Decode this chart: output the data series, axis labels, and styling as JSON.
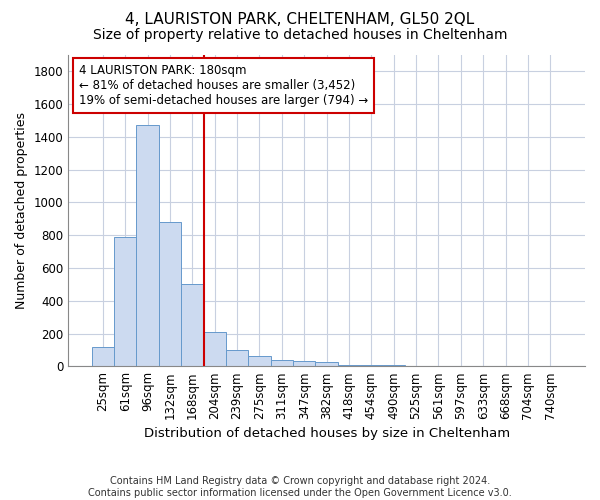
{
  "title1": "4, LAURISTON PARK, CHELTENHAM, GL50 2QL",
  "title2": "Size of property relative to detached houses in Cheltenham",
  "xlabel": "Distribution of detached houses by size in Cheltenham",
  "ylabel": "Number of detached properties",
  "footnote1": "Contains HM Land Registry data © Crown copyright and database right 2024.",
  "footnote2": "Contains public sector information licensed under the Open Government Licence v3.0.",
  "categories": [
    "25sqm",
    "61sqm",
    "96sqm",
    "132sqm",
    "168sqm",
    "204sqm",
    "239sqm",
    "275sqm",
    "311sqm",
    "347sqm",
    "382sqm",
    "418sqm",
    "454sqm",
    "490sqm",
    "525sqm",
    "561sqm",
    "597sqm",
    "633sqm",
    "668sqm",
    "704sqm",
    "740sqm"
  ],
  "values": [
    120,
    790,
    1470,
    880,
    500,
    210,
    100,
    60,
    40,
    30,
    25,
    10,
    5,
    5,
    3,
    3,
    3,
    3,
    3,
    3,
    0
  ],
  "bar_color": "#ccdaf0",
  "bar_edge_color": "#6699cc",
  "grid_color": "#c8d0e0",
  "vline_x": 4.5,
  "vline_color": "#cc0000",
  "annotation_line1": "4 LAURISTON PARK: 180sqm",
  "annotation_line2": "← 81% of detached houses are smaller (3,452)",
  "annotation_line3": "19% of semi-detached houses are larger (794) →",
  "annotation_box_color": "#ffffff",
  "annotation_box_edge": "#cc0000",
  "ylim": [
    0,
    1900
  ],
  "yticks": [
    0,
    200,
    400,
    600,
    800,
    1000,
    1200,
    1400,
    1600,
    1800
  ],
  "bg_color": "#ffffff",
  "title1_fontsize": 11,
  "title2_fontsize": 10,
  "xlabel_fontsize": 9.5,
  "ylabel_fontsize": 9,
  "tick_fontsize": 8.5,
  "annot_fontsize": 8.5,
  "footnote_fontsize": 7
}
